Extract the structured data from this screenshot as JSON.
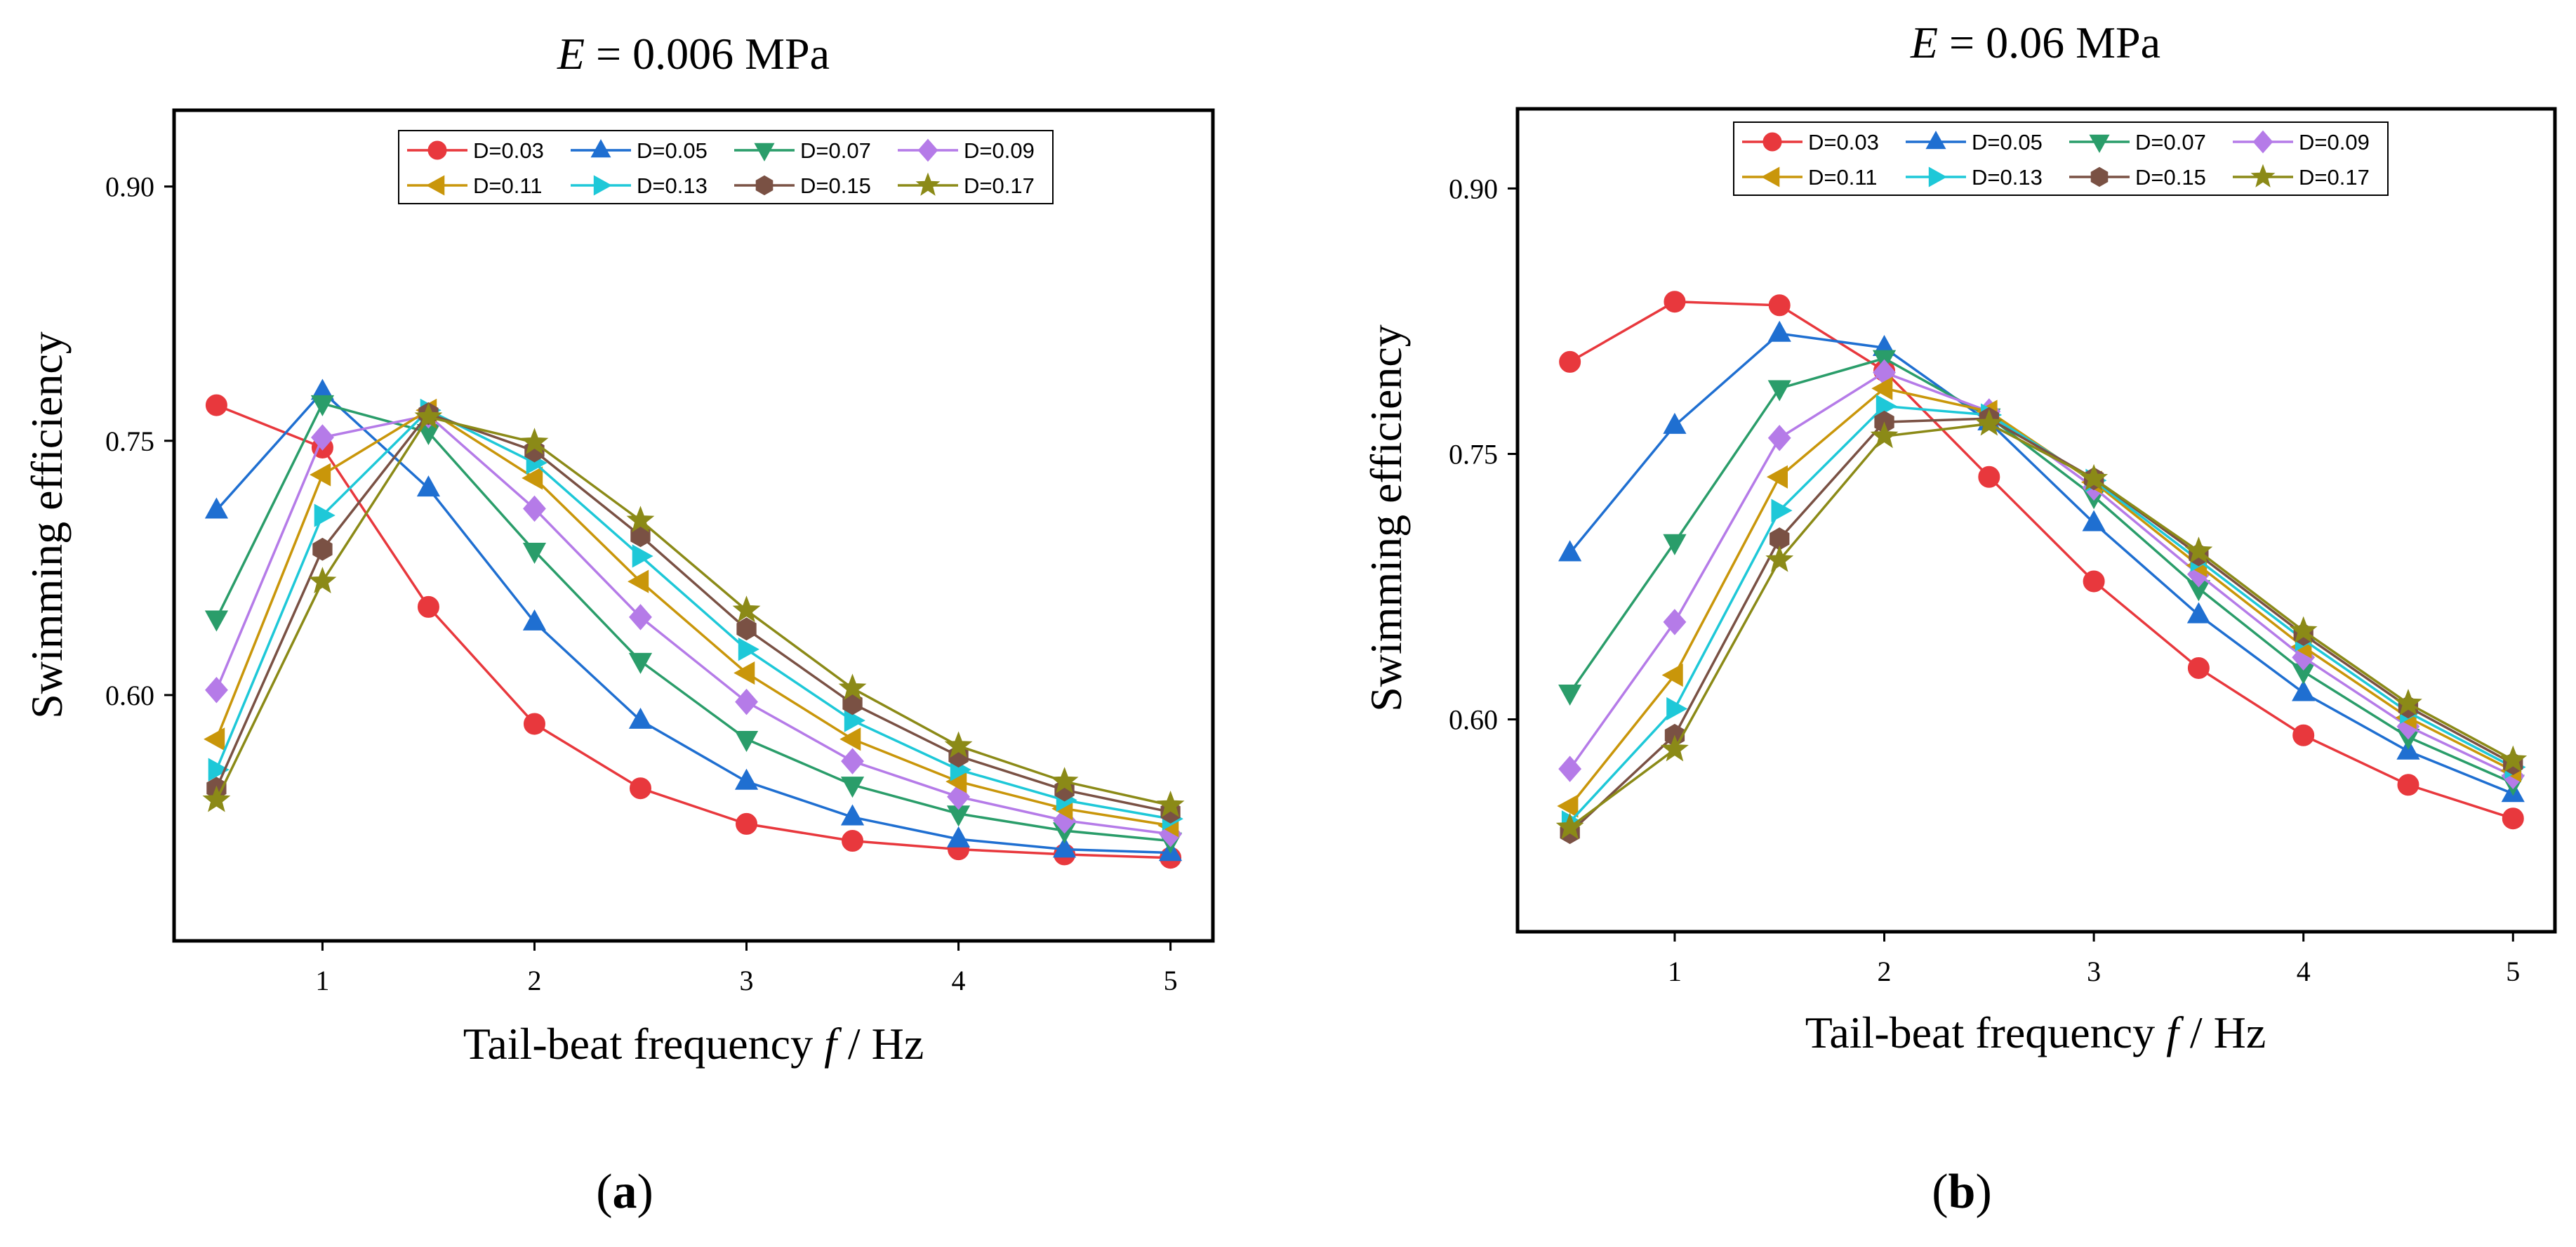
{
  "chart_data": [
    {
      "type": "line",
      "title": "E = 0.006 MPa",
      "title_var": "E",
      "title_rest": " = 0.006 MPa",
      "xlabel_pre": "Tail-beat frequency ",
      "xlabel_var": "f",
      "xlabel_post": " / Hz",
      "ylabel": "Swimming efficiency",
      "panel_label": "a",
      "xlim": [
        0.3,
        5.2
      ],
      "ylim": [
        0.455,
        0.945
      ],
      "xticks": [
        "1",
        "2",
        "3",
        "4",
        "5"
      ],
      "yticks": [
        "0.90",
        "0.75",
        "0.60"
      ],
      "legend_placement": "top-center",
      "x": [
        0.5,
        1,
        1.5,
        2,
        2.5,
        3,
        3.5,
        4,
        4.5,
        5
      ],
      "series": [
        {
          "name": "D=0.03",
          "color": "#e8383d",
          "marker": "circle",
          "values": [
            0.771,
            0.746,
            0.652,
            0.583,
            0.545,
            0.524,
            0.514,
            0.509,
            0.506,
            0.504
          ]
        },
        {
          "name": "D=0.05",
          "color": "#1f6fd1",
          "marker": "triangle-up",
          "values": [
            0.709,
            0.779,
            0.722,
            0.643,
            0.585,
            0.549,
            0.528,
            0.515,
            0.509,
            0.507
          ]
        },
        {
          "name": "D=0.07",
          "color": "#2a9d6a",
          "marker": "triangle-down",
          "values": [
            0.645,
            0.772,
            0.755,
            0.685,
            0.62,
            0.574,
            0.547,
            0.53,
            0.52,
            0.514
          ]
        },
        {
          "name": "D=0.09",
          "color": "#b57be8",
          "marker": "diamond",
          "values": [
            0.603,
            0.752,
            0.765,
            0.71,
            0.646,
            0.596,
            0.561,
            0.54,
            0.526,
            0.518
          ]
        },
        {
          "name": "D=0.11",
          "color": "#c9960a",
          "marker": "triangle-left",
          "values": [
            0.574,
            0.73,
            0.768,
            0.728,
            0.667,
            0.613,
            0.574,
            0.549,
            0.533,
            0.523
          ]
        },
        {
          "name": "D=0.13",
          "color": "#1ec8d8",
          "marker": "triangle-right",
          "values": [
            0.556,
            0.706,
            0.768,
            0.737,
            0.682,
            0.627,
            0.585,
            0.556,
            0.538,
            0.527
          ]
        },
        {
          "name": "D=0.15",
          "color": "#7a5144",
          "marker": "hexagon",
          "values": [
            0.545,
            0.686,
            0.766,
            0.744,
            0.694,
            0.639,
            0.595,
            0.564,
            0.544,
            0.531
          ]
        },
        {
          "name": "D=0.17",
          "color": "#8b8a17",
          "marker": "star",
          "values": [
            0.538,
            0.667,
            0.764,
            0.749,
            0.703,
            0.65,
            0.604,
            0.57,
            0.549,
            0.535
          ]
        }
      ]
    },
    {
      "type": "line",
      "title": "E = 0.06 MPa",
      "title_var": "E",
      "title_rest": " = 0.06 MPa",
      "xlabel_pre": "Tail-beat frequency ",
      "xlabel_var": "f",
      "xlabel_post": " / Hz",
      "ylabel": "Swimming efficiency",
      "panel_label": "b",
      "xlim": [
        0.25,
        5.2
      ],
      "ylim": [
        0.48,
        0.945
      ],
      "xticks": [
        "1",
        "2",
        "3",
        "4",
        "5"
      ],
      "yticks": [
        "0.90",
        "0.75",
        "0.60"
      ],
      "legend_placement": "top-center",
      "x": [
        0.5,
        1,
        1.5,
        2,
        2.5,
        3,
        3.5,
        4,
        4.5,
        5
      ],
      "series": [
        {
          "name": "D=0.03",
          "color": "#e8383d",
          "marker": "circle",
          "values": [
            0.802,
            0.836,
            0.834,
            0.797,
            0.737,
            0.678,
            0.629,
            0.591,
            0.563,
            0.544
          ]
        },
        {
          "name": "D=0.05",
          "color": "#1f6fd1",
          "marker": "triangle-up",
          "values": [
            0.694,
            0.766,
            0.818,
            0.81,
            0.768,
            0.711,
            0.659,
            0.615,
            0.582,
            0.558
          ]
        },
        {
          "name": "D=0.07",
          "color": "#2a9d6a",
          "marker": "triangle-down",
          "values": [
            0.615,
            0.7,
            0.787,
            0.804,
            0.771,
            0.726,
            0.674,
            0.627,
            0.59,
            0.564
          ]
        },
        {
          "name": "D=0.09",
          "color": "#b57be8",
          "marker": "diamond",
          "values": [
            0.572,
            0.655,
            0.759,
            0.796,
            0.774,
            0.731,
            0.682,
            0.635,
            0.596,
            0.568
          ]
        },
        {
          "name": "D=0.11",
          "color": "#c9960a",
          "marker": "triangle-left",
          "values": [
            0.551,
            0.625,
            0.737,
            0.787,
            0.774,
            0.734,
            0.687,
            0.641,
            0.601,
            0.571
          ]
        },
        {
          "name": "D=0.13",
          "color": "#1ec8d8",
          "marker": "triangle-right",
          "values": [
            0.542,
            0.606,
            0.718,
            0.777,
            0.772,
            0.735,
            0.69,
            0.645,
            0.604,
            0.573
          ]
        },
        {
          "name": "D=0.15",
          "color": "#7a5144",
          "marker": "hexagon",
          "values": [
            0.536,
            0.591,
            0.702,
            0.768,
            0.77,
            0.736,
            0.693,
            0.648,
            0.607,
            0.575
          ]
        },
        {
          "name": "D=0.17",
          "color": "#8b8a17",
          "marker": "star",
          "values": [
            0.539,
            0.583,
            0.69,
            0.76,
            0.767,
            0.736,
            0.695,
            0.65,
            0.609,
            0.577
          ]
        }
      ]
    }
  ]
}
